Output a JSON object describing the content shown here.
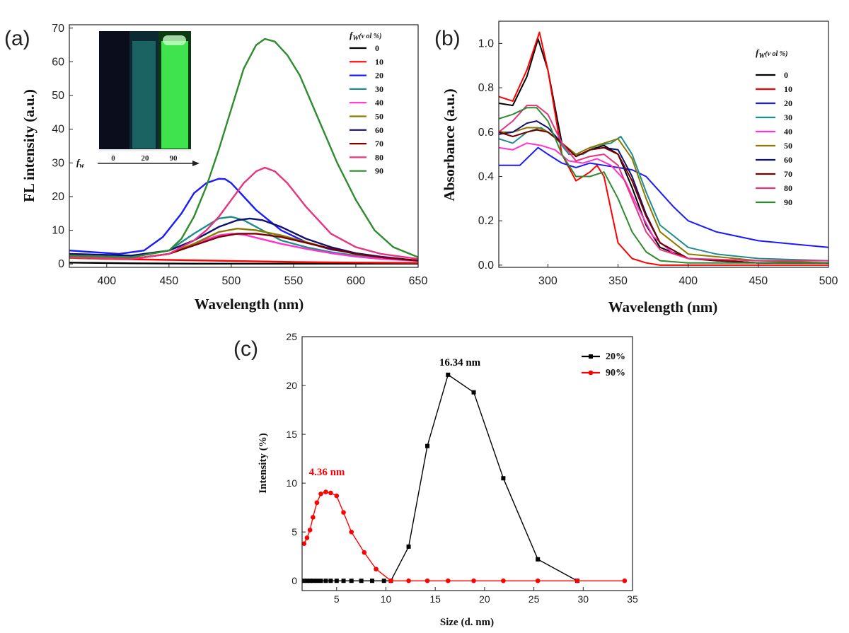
{
  "chart_data": [
    {
      "panel": "(a)",
      "type": "line",
      "xlabel": "Wavelength (nm)",
      "ylabel": "FL intensity (a.u.)",
      "xlim": [
        370,
        650
      ],
      "ylim": [
        -1,
        71
      ],
      "xticks": [
        400,
        450,
        500,
        550,
        600,
        650
      ],
      "yticks": [
        0,
        10,
        20,
        30,
        40,
        50,
        60,
        70
      ],
      "legend_title": "f",
      "legend_title_sub": "W",
      "legend_title_rest": "(v ol %)",
      "series": [
        {
          "name": "0",
          "color": "#000000",
          "x": [
            370,
            420,
            470,
            520,
            570,
            620,
            650
          ],
          "y": [
            0.4,
            0.2,
            0.1,
            0.1,
            0.1,
            0.1,
            0.1
          ]
        },
        {
          "name": "10",
          "color": "#ff0000",
          "x": [
            370,
            400,
            450,
            500,
            550,
            600,
            650
          ],
          "y": [
            1.8,
            1.5,
            1.2,
            0.9,
            0.6,
            0.4,
            0.3
          ]
        },
        {
          "name": "20",
          "color": "#1a1aff",
          "x": [
            370,
            390,
            410,
            430,
            445,
            460,
            470,
            480,
            490,
            495,
            500,
            510,
            520,
            540,
            560,
            580,
            600,
            620,
            650
          ],
          "y": [
            4.0,
            3.5,
            3.0,
            4.0,
            8.0,
            15.0,
            21.0,
            24.0,
            25.3,
            25.2,
            24.0,
            20.0,
            16.0,
            10.0,
            6.5,
            4.3,
            3.2,
            2.2,
            1.0
          ]
        },
        {
          "name": "30",
          "color": "#218c8c",
          "x": [
            370,
            420,
            450,
            470,
            490,
            500,
            510,
            520,
            540,
            560,
            580,
            600,
            620,
            650
          ],
          "y": [
            2.5,
            2.0,
            4.0,
            9.0,
            13.5,
            14.0,
            13.0,
            11.0,
            7.0,
            5.0,
            3.5,
            2.5,
            1.8,
            1.0
          ]
        },
        {
          "name": "40",
          "color": "#ff33cc",
          "x": [
            370,
            420,
            450,
            470,
            490,
            500,
            510,
            520,
            540,
            560,
            580,
            600,
            620,
            650
          ],
          "y": [
            2.0,
            1.5,
            3.0,
            6.0,
            8.5,
            9.0,
            8.7,
            7.8,
            6.0,
            4.5,
            3.2,
            2.2,
            1.5,
            0.9
          ]
        },
        {
          "name": "50",
          "color": "#8c7a00",
          "x": [
            370,
            420,
            450,
            470,
            490,
            505,
            520,
            540,
            560,
            580,
            600,
            620,
            650
          ],
          "y": [
            1.8,
            1.5,
            3.0,
            6.0,
            9.5,
            10.5,
            10.0,
            8.5,
            6.5,
            4.5,
            3.0,
            2.0,
            1.0
          ]
        },
        {
          "name": "60",
          "color": "#101070",
          "x": [
            370,
            420,
            450,
            470,
            490,
            505,
            515,
            525,
            540,
            560,
            580,
            600,
            620,
            650
          ],
          "y": [
            3.0,
            2.5,
            4.0,
            7.0,
            11.0,
            13.0,
            13.5,
            13.0,
            11.0,
            7.5,
            5.0,
            3.2,
            2.0,
            1.0
          ]
        },
        {
          "name": "70",
          "color": "#7a0000",
          "x": [
            370,
            420,
            450,
            470,
            490,
            505,
            520,
            540,
            560,
            580,
            600,
            620,
            650
          ],
          "y": [
            2.0,
            1.5,
            3.0,
            5.5,
            8.0,
            9.0,
            9.0,
            8.0,
            6.3,
            4.5,
            3.0,
            2.0,
            1.0
          ]
        },
        {
          "name": "80",
          "color": "#e8337e",
          "x": [
            370,
            420,
            450,
            470,
            480,
            490,
            500,
            510,
            520,
            527,
            535,
            545,
            560,
            580,
            600,
            620,
            650
          ],
          "y": [
            2.0,
            1.5,
            3.0,
            7.0,
            10.0,
            14.0,
            19.0,
            24.0,
            27.5,
            28.6,
            27.5,
            24.0,
            17.0,
            9.0,
            5.0,
            3.0,
            1.5
          ]
        },
        {
          "name": "90",
          "color": "#2e8b2e",
          "x": [
            370,
            420,
            450,
            460,
            470,
            480,
            490,
            500,
            510,
            520,
            527,
            535,
            545,
            555,
            570,
            585,
            600,
            615,
            630,
            650
          ],
          "y": [
            2.5,
            2.0,
            4.0,
            7.5,
            14.0,
            23.0,
            34.0,
            46.0,
            58.0,
            65.0,
            66.8,
            66.0,
            62.0,
            56.0,
            43.0,
            30.0,
            19.0,
            10.0,
            5.0,
            2.0
          ]
        }
      ],
      "inset": {
        "vials": [
          "0",
          "20",
          "90"
        ],
        "arrow_label": "f",
        "arrow_label_sub": "w"
      }
    },
    {
      "panel": "(b)",
      "type": "line",
      "xlabel": "Wavelength (nm)",
      "ylabel": "Absorbance (a.u.)",
      "xlim": [
        265,
        500
      ],
      "ylim": [
        -0.01,
        1.1
      ],
      "xticks": [
        300,
        350,
        400,
        450,
        500
      ],
      "yticks": [
        0.0,
        0.2,
        0.4,
        0.6,
        0.8,
        1.0
      ],
      "legend_title": "f",
      "legend_title_sub": "W",
      "legend_title_rest": "(v ol %)",
      "series": [
        {
          "name": "0",
          "color": "#000000",
          "x": [
            265,
            275,
            285,
            293,
            300,
            310,
            320,
            330,
            340,
            350,
            360,
            370,
            380,
            400,
            420,
            450,
            500
          ],
          "y": [
            0.73,
            0.72,
            0.85,
            1.02,
            0.88,
            0.55,
            0.49,
            0.52,
            0.54,
            0.5,
            0.35,
            0.18,
            0.08,
            0.03,
            0.02,
            0.01,
            0.01
          ]
        },
        {
          "name": "10",
          "color": "#ff0000",
          "x": [
            265,
            275,
            285,
            294,
            300,
            310,
            320,
            330,
            335,
            340,
            345,
            350,
            360,
            370,
            380,
            400,
            500
          ],
          "y": [
            0.76,
            0.74,
            0.88,
            1.05,
            0.88,
            0.5,
            0.38,
            0.42,
            0.45,
            0.4,
            0.25,
            0.1,
            0.03,
            0.01,
            0.0,
            0.0,
            0.0
          ]
        },
        {
          "name": "20",
          "color": "#1a1aff",
          "x": [
            265,
            280,
            293,
            300,
            310,
            320,
            330,
            340,
            350,
            360,
            370,
            380,
            390,
            400,
            420,
            450,
            500
          ],
          "y": [
            0.45,
            0.45,
            0.53,
            0.5,
            0.46,
            0.44,
            0.46,
            0.45,
            0.44,
            0.43,
            0.4,
            0.33,
            0.26,
            0.2,
            0.15,
            0.11,
            0.08
          ]
        },
        {
          "name": "30",
          "color": "#218c8c",
          "x": [
            265,
            275,
            285,
            295,
            305,
            315,
            325,
            335,
            345,
            352,
            360,
            370,
            380,
            400,
            420,
            450,
            500
          ],
          "y": [
            0.57,
            0.55,
            0.6,
            0.62,
            0.58,
            0.5,
            0.5,
            0.54,
            0.55,
            0.58,
            0.5,
            0.33,
            0.18,
            0.08,
            0.05,
            0.03,
            0.02
          ]
        },
        {
          "name": "40",
          "color": "#ff33cc",
          "x": [
            265,
            275,
            285,
            295,
            305,
            315,
            325,
            335,
            345,
            355,
            365,
            375,
            390,
            400,
            450,
            500
          ],
          "y": [
            0.53,
            0.52,
            0.55,
            0.54,
            0.52,
            0.47,
            0.46,
            0.48,
            0.45,
            0.38,
            0.25,
            0.13,
            0.05,
            0.03,
            0.01,
            0.01
          ]
        },
        {
          "name": "50",
          "color": "#8c7a00",
          "x": [
            265,
            275,
            285,
            293,
            300,
            310,
            320,
            330,
            340,
            350,
            360,
            370,
            380,
            400,
            450,
            500
          ],
          "y": [
            0.6,
            0.6,
            0.62,
            0.62,
            0.6,
            0.55,
            0.5,
            0.53,
            0.55,
            0.57,
            0.48,
            0.3,
            0.15,
            0.05,
            0.02,
            0.01
          ]
        },
        {
          "name": "60",
          "color": "#101070",
          "x": [
            265,
            275,
            285,
            292,
            300,
            310,
            320,
            330,
            340,
            350,
            360,
            370,
            380,
            400,
            450,
            500
          ],
          "y": [
            0.59,
            0.6,
            0.64,
            0.65,
            0.62,
            0.55,
            0.49,
            0.52,
            0.53,
            0.52,
            0.4,
            0.23,
            0.1,
            0.03,
            0.01,
            0.01
          ]
        },
        {
          "name": "70",
          "color": "#7a0000",
          "x": [
            265,
            275,
            285,
            292,
            300,
            310,
            320,
            330,
            340,
            350,
            360,
            370,
            380,
            400,
            450,
            500
          ],
          "y": [
            0.6,
            0.58,
            0.6,
            0.61,
            0.6,
            0.55,
            0.49,
            0.52,
            0.53,
            0.5,
            0.38,
            0.22,
            0.1,
            0.03,
            0.01,
            0.01
          ]
        },
        {
          "name": "80",
          "color": "#e8337e",
          "x": [
            265,
            275,
            285,
            292,
            300,
            310,
            320,
            330,
            340,
            350,
            360,
            370,
            380,
            400,
            450,
            500
          ],
          "y": [
            0.6,
            0.65,
            0.72,
            0.72,
            0.68,
            0.55,
            0.47,
            0.49,
            0.5,
            0.45,
            0.3,
            0.15,
            0.07,
            0.03,
            0.02,
            0.02
          ]
        },
        {
          "name": "90",
          "color": "#2e8b2e",
          "x": [
            265,
            275,
            285,
            292,
            300,
            310,
            320,
            330,
            340,
            350,
            360,
            370,
            380,
            400,
            450,
            500
          ],
          "y": [
            0.66,
            0.68,
            0.71,
            0.71,
            0.65,
            0.5,
            0.4,
            0.4,
            0.42,
            0.3,
            0.15,
            0.06,
            0.02,
            0.01,
            0.01,
            0.01
          ]
        }
      ]
    },
    {
      "panel": "(c)",
      "type": "line",
      "xlabel": "Size (d. nm)",
      "ylabel": "Intensity (%)",
      "xlim": [
        1.5,
        35
      ],
      "ylim": [
        -1,
        25
      ],
      "xticks": [
        5,
        10,
        15,
        20,
        25,
        30,
        35
      ],
      "yticks": [
        0,
        5,
        10,
        15,
        20,
        25
      ],
      "series": [
        {
          "name": "20%",
          "color": "#000000",
          "marker": "square",
          "x": [
            1.7,
            2.0,
            2.3,
            2.6,
            3.0,
            3.4,
            3.9,
            4.4,
            5.0,
            5.7,
            6.5,
            7.5,
            8.6,
            9.8,
            10.5,
            12.3,
            14.2,
            16.3,
            18.9,
            21.9,
            25.4,
            29.4
          ],
          "y": [
            0,
            0,
            0,
            0,
            0,
            0,
            0,
            0,
            0,
            0,
            0,
            0,
            0,
            0,
            0,
            3.5,
            13.8,
            21.1,
            19.3,
            10.5,
            2.2,
            0
          ]
        },
        {
          "name": "90%",
          "color": "#ff0000",
          "marker": "circle",
          "x": [
            1.7,
            2.0,
            2.3,
            2.6,
            3.0,
            3.4,
            3.9,
            4.4,
            5.0,
            5.7,
            6.5,
            7.8,
            9.0,
            10.5,
            12.3,
            14.2,
            16.3,
            18.9,
            21.9,
            25.4,
            29.4,
            34.2
          ],
          "y": [
            3.8,
            4.4,
            5.2,
            6.5,
            8.0,
            8.9,
            9.1,
            9.0,
            8.7,
            7.0,
            5.0,
            2.9,
            1.2,
            0,
            0,
            0,
            0,
            0,
            0,
            0,
            0,
            0
          ]
        }
      ],
      "annotations": [
        {
          "text": "16.34 nm",
          "color": "#000000"
        },
        {
          "text": "4.36 nm",
          "color": "#ff0000"
        }
      ]
    }
  ]
}
